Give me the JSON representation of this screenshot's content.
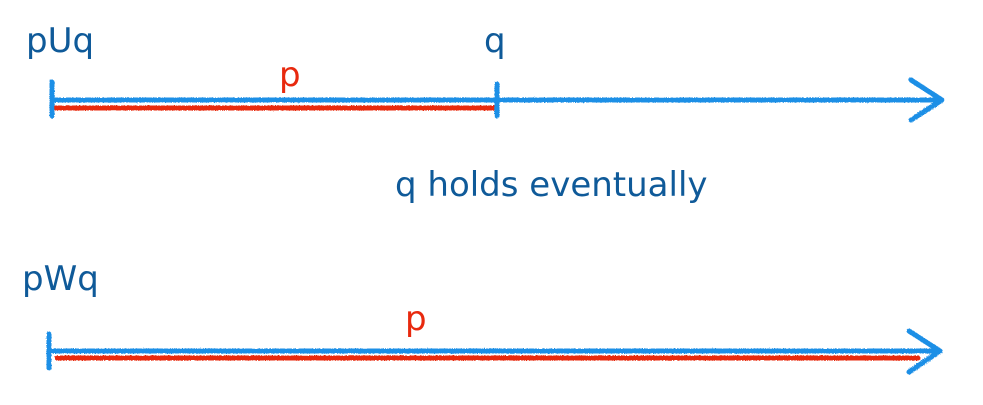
{
  "colors": {
    "timeline": "#1d8fe6",
    "interval": "#e8290e",
    "text_dark": "#0f5a99",
    "text_red": "#e8290e"
  },
  "until": {
    "formula": "pU‍q",
    "p_label": "p",
    "q_label": "q",
    "caption": "q holds eventually"
  },
  "weak_until": {
    "formula": "pWq",
    "p_label": "p"
  }
}
